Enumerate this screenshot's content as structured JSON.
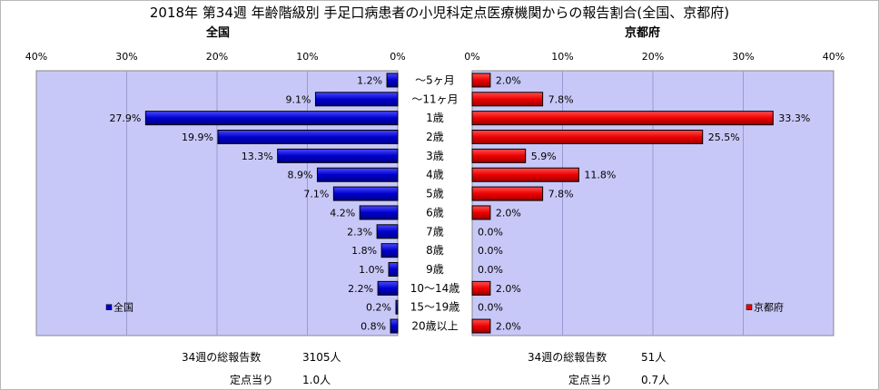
{
  "title": "2018年 第34週 年齢階級別 手足口病患者の小児科定点医療機関からの報告割合(全国、京都府)",
  "left_panel": {
    "title": "全国",
    "legend": "全国"
  },
  "right_panel": {
    "title": "京都府",
    "legend": "京都府"
  },
  "colors": {
    "national": "#0000cc",
    "kyoto": "#ee0000",
    "plot_bg": "#c8c8f8"
  },
  "chart_data": [
    {
      "type": "bar",
      "orientation": "horizontal-reversed",
      "title": "全国",
      "categories": [
        "～5ヶ月",
        "～11ヶ月",
        "1歳",
        "2歳",
        "3歳",
        "4歳",
        "5歳",
        "6歳",
        "7歳",
        "8歳",
        "9歳",
        "10～14歳",
        "15～19歳",
        "20歳以上"
      ],
      "series": [
        {
          "name": "全国",
          "values": [
            1.2,
            9.1,
            27.9,
            19.9,
            13.3,
            8.9,
            7.1,
            4.2,
            2.3,
            1.8,
            1.0,
            2.2,
            0.2,
            0.8
          ],
          "labels": [
            "1.2%",
            "9.1%",
            "27.9%",
            "19.9%",
            "13.3%",
            "8.9%",
            "7.1%",
            "4.2%",
            "2.3%",
            "1.8%",
            "1.0%",
            "2.2%",
            "0.2%",
            "0.8%"
          ]
        }
      ],
      "ticks": [
        "40%",
        "30%",
        "20%",
        "10%",
        "0%"
      ],
      "xlim": [
        0,
        40
      ],
      "legend": "bottom-left"
    },
    {
      "type": "bar",
      "orientation": "horizontal",
      "title": "京都府",
      "categories": [
        "～5ヶ月",
        "～11ヶ月",
        "1歳",
        "2歳",
        "3歳",
        "4歳",
        "5歳",
        "6歳",
        "7歳",
        "8歳",
        "9歳",
        "10～14歳",
        "15～19歳",
        "20歳以上"
      ],
      "series": [
        {
          "name": "京都府",
          "values": [
            2.0,
            7.8,
            33.3,
            25.5,
            5.9,
            11.8,
            7.8,
            2.0,
            0.0,
            0.0,
            0.0,
            2.0,
            0.0,
            2.0
          ],
          "labels": [
            "2.0%",
            "7.8%",
            "33.3%",
            "25.5%",
            "5.9%",
            "11.8%",
            "7.8%",
            "2.0%",
            "0.0%",
            "0.0%",
            "0.0%",
            "2.0%",
            "0.0%",
            "2.0%"
          ]
        }
      ],
      "ticks": [
        "0%",
        "10%",
        "20%",
        "30%",
        "40%"
      ],
      "xlim": [
        0,
        40
      ],
      "legend": "bottom-right"
    }
  ],
  "footer": {
    "national_total_label": "34週の総報告数",
    "national_total_value": "3105人",
    "national_per_label": "定点当り",
    "national_per_value": "1.0人",
    "kyoto_total_label": "34週の総報告数",
    "kyoto_total_value": "51人",
    "kyoto_per_label": "定点当り",
    "kyoto_per_value": "0.7人"
  }
}
